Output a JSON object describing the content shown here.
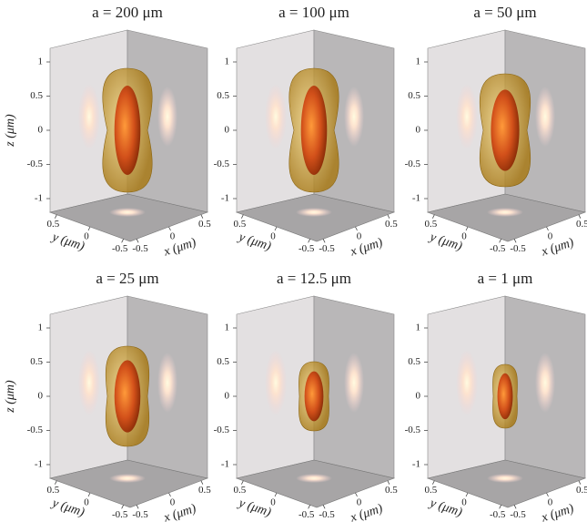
{
  "chart_data": [
    {
      "type": "isosurface",
      "title": "a = 200 μm",
      "zlabel": "z (μm)",
      "xlabel": "x (μm)",
      "ylabel": "y (μm)",
      "xlim": [
        -0.6,
        0.6
      ],
      "ylim": [
        0.6,
        -0.6
      ],
      "zlim": [
        -1.2,
        1.2
      ],
      "xticks": [
        -0.5,
        0,
        0.5
      ],
      "yticks": [
        0.5,
        0,
        -0.5
      ],
      "zticks": [
        -1,
        -0.5,
        0,
        0.5,
        1
      ]
    },
    {
      "type": "isosurface",
      "title": "a = 100 μm",
      "xlabel": "x (μm)",
      "ylabel": "y (μm)",
      "xlim": [
        -0.6,
        0.6
      ],
      "ylim": [
        0.6,
        -0.6
      ],
      "zlim": [
        -1.2,
        1.2
      ],
      "xticks": [
        -0.5,
        0,
        0.5
      ],
      "yticks": [
        0.5,
        0,
        -0.5
      ],
      "zticks": [
        -1,
        -0.5,
        0,
        0.5,
        1
      ]
    },
    {
      "type": "isosurface",
      "title": "a = 50 μm",
      "xlabel": "x (μm)",
      "ylabel": "y (μm)",
      "xlim": [
        -0.6,
        0.6
      ],
      "ylim": [
        0.6,
        -0.6
      ],
      "zlim": [
        -1.2,
        1.2
      ],
      "xticks": [
        -0.5,
        0,
        0.5
      ],
      "yticks": [
        0.5,
        0,
        -0.5
      ],
      "zticks": [
        -1,
        -0.5,
        0,
        0.5,
        1
      ]
    },
    {
      "type": "isosurface",
      "title": "a = 25 μm",
      "zlabel": "z (μm)",
      "xlabel": "x (μm)",
      "ylabel": "y (μm)",
      "xlim": [
        -0.6,
        0.6
      ],
      "ylim": [
        0.6,
        -0.6
      ],
      "zlim": [
        -1.2,
        1.2
      ],
      "xticks": [
        -0.5,
        0,
        0.5
      ],
      "yticks": [
        0.5,
        0,
        -0.5
      ],
      "zticks": [
        -1,
        -0.5,
        0,
        0.5,
        1
      ]
    },
    {
      "type": "isosurface",
      "title": "a = 12.5 μm",
      "xlabel": "x (μm)",
      "ylabel": "y (μm)",
      "xlim": [
        -0.6,
        0.6
      ],
      "ylim": [
        0.6,
        -0.6
      ],
      "zlim": [
        -1.2,
        1.2
      ],
      "xticks": [
        -0.5,
        0,
        0.5
      ],
      "yticks": [
        0.5,
        0,
        -0.5
      ],
      "zticks": [
        -1,
        -0.5,
        0,
        0.5,
        1
      ]
    },
    {
      "type": "isosurface",
      "title": "a = 1 μm",
      "xlabel": "x (μm)",
      "ylabel": "y (μm)",
      "xlim": [
        -0.6,
        0.6
      ],
      "ylim": [
        0.6,
        -0.6
      ],
      "zlim": [
        -1.2,
        1.2
      ],
      "xticks": [
        -0.5,
        0,
        0.5
      ],
      "yticks": [
        0.5,
        0,
        -0.5
      ],
      "zticks": [
        -1,
        -0.5,
        0,
        0.5,
        1
      ]
    }
  ]
}
